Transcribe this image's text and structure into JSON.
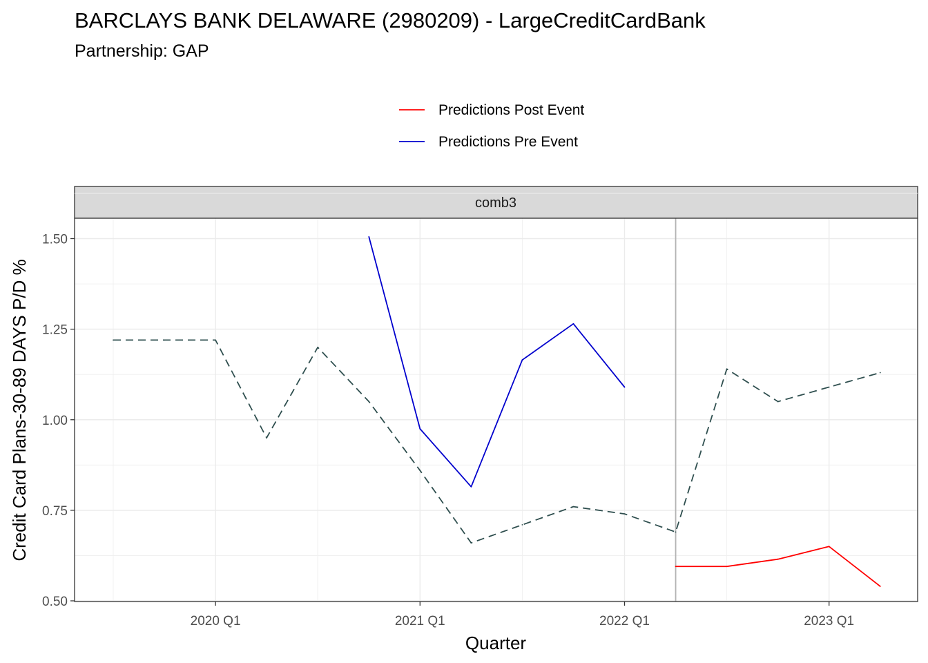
{
  "chart_data": {
    "type": "line",
    "title": "BARCLAYS BANK DELAWARE (2980209) - LargeCreditCardBank",
    "subtitle": "Partnership: GAP",
    "panel_label": "comb3",
    "xlabel": "Quarter",
    "ylabel": "Credit Card Plans-30-89 DAYS P/D %",
    "x_ticks": [
      "2020 Q1",
      "2021 Q1",
      "2022 Q1",
      "2023 Q1"
    ],
    "y_ticks": [
      "0.50",
      "0.75",
      "1.00",
      "1.25",
      "1.50"
    ],
    "ylim": [
      0.5,
      1.55
    ],
    "event_marker": "2022 Q2",
    "legend_position": "top",
    "legend": [
      {
        "name": "Predictions Post Event",
        "color": "#ff0000"
      },
      {
        "name": "Predictions Pre Event",
        "color": "#0000cd"
      }
    ],
    "series": [
      {
        "name": "",
        "style": "dashed",
        "color": "#2f4f4f",
        "points": [
          {
            "x": "2019 Q3",
            "y": 1.22
          },
          {
            "x": "2019 Q4",
            "y": 1.22
          },
          {
            "x": "2020 Q1",
            "y": 1.22
          },
          {
            "x": "2020 Q2",
            "y": 0.95
          },
          {
            "x": "2020 Q3",
            "y": 1.2
          },
          {
            "x": "2020 Q4",
            "y": 1.05
          },
          {
            "x": "2021 Q1",
            "y": 0.86
          },
          {
            "x": "2021 Q2",
            "y": 0.66
          },
          {
            "x": "2021 Q3",
            "y": 0.71
          },
          {
            "x": "2021 Q4",
            "y": 0.76
          },
          {
            "x": "2022 Q1",
            "y": 0.74
          },
          {
            "x": "2022 Q2",
            "y": 0.69
          },
          {
            "x": "2022 Q3",
            "y": 1.14
          },
          {
            "x": "2022 Q4",
            "y": 1.05
          },
          {
            "x": "2023 Q1",
            "y": 1.09
          },
          {
            "x": "2023 Q2",
            "y": 1.13
          }
        ]
      },
      {
        "name": "Predictions Pre Event",
        "style": "solid",
        "color": "#0000cd",
        "points": [
          {
            "x": "2020 Q4",
            "y": 1.505
          },
          {
            "x": "2021 Q1",
            "y": 0.975
          },
          {
            "x": "2021 Q2",
            "y": 0.815
          },
          {
            "x": "2021 Q3",
            "y": 1.165
          },
          {
            "x": "2021 Q4",
            "y": 1.265
          },
          {
            "x": "2022 Q1",
            "y": 1.09
          }
        ]
      },
      {
        "name": "Predictions Post Event",
        "style": "solid",
        "color": "#ff0000",
        "points": [
          {
            "x": "2022 Q2",
            "y": 0.595
          },
          {
            "x": "2022 Q3",
            "y": 0.595
          },
          {
            "x": "2022 Q4",
            "y": 0.615
          },
          {
            "x": "2023 Q1",
            "y": 0.65
          },
          {
            "x": "2023 Q2",
            "y": 0.54
          }
        ]
      }
    ]
  }
}
